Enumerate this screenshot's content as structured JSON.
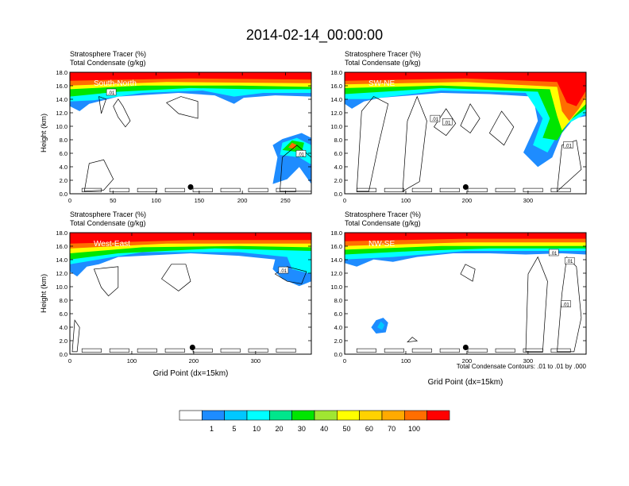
{
  "figure": {
    "title": "2014-02-14_00:00:00",
    "footnote": "Total Condensate Contours: .01 to .01 by .000"
  },
  "colorbar": {
    "labels": [
      "1",
      "5",
      "10",
      "20",
      "30",
      "40",
      "50",
      "60",
      "70",
      "100"
    ],
    "colors": [
      "#ffffff",
      "#1e8cff",
      "#00c8ff",
      "#00ffff",
      "#00e68c",
      "#00e600",
      "#a0e632",
      "#ffff00",
      "#ffd200",
      "#ffaa00",
      "#ff6e00",
      "#ff0000"
    ]
  },
  "chart_data": [
    {
      "type": "heatmap",
      "label": "South-North",
      "header_line1": "Stratosphere Tracer   (%)",
      "header_line2": "Total Condensate   (g/kg)",
      "ylabel": "Height (km)",
      "xlabel": "",
      "xlim": [
        0,
        280
      ],
      "ylim": [
        0,
        18
      ],
      "xticks": [
        "0",
        "50",
        "100",
        "150",
        "200",
        "250"
      ],
      "yticks": [
        "0.0",
        "2.0",
        "4.0",
        "6.0",
        "8.0",
        "10.0",
        "12.0",
        "14.0",
        "16.0",
        "18.0"
      ],
      "contour_labels": [
        {
          "x": 48,
          "y": 15.0,
          "text": ".01"
        },
        {
          "x": 268,
          "y": 5.9,
          "text": ".01"
        }
      ],
      "marker": {
        "x": 140,
        "y": 1.0
      }
    },
    {
      "type": "heatmap",
      "label": "SW-NE",
      "header_line1": "Stratosphere Tracer   (%)",
      "header_line2": "Total Condensate   (g/kg)",
      "ylabel": "",
      "xlabel": "",
      "xlim": [
        0,
        395
      ],
      "ylim": [
        0,
        18
      ],
      "xticks": [
        "0",
        "100",
        "200",
        "300"
      ],
      "yticks": [
        "0.0",
        "2.0",
        "4.0",
        "6.0",
        "8.0",
        "10.0",
        "12.0",
        "14.0",
        "16.0",
        "18.0"
      ],
      "contour_labels": [
        {
          "x": 148,
          "y": 11.1,
          "text": ".01"
        },
        {
          "x": 168,
          "y": 10.6,
          "text": ".01"
        },
        {
          "x": 366,
          "y": 7.2,
          "text": ".01"
        }
      ],
      "marker": {
        "x": 198,
        "y": 1.0
      }
    },
    {
      "type": "heatmap",
      "label": "West-East",
      "header_line1": "Stratosphere Tracer   (%)",
      "header_line2": "Total Condensate   (g/kg)",
      "ylabel": "Height (km)",
      "xlabel": "Grid Point (dx=15km)",
      "xlim": [
        0,
        390
      ],
      "ylim": [
        0,
        18
      ],
      "xticks": [
        "0",
        "100",
        "200",
        "300"
      ],
      "yticks": [
        "0.0",
        "2.0",
        "4.0",
        "6.0",
        "8.0",
        "10.0",
        "12.0",
        "14.0",
        "16.0",
        "18.0"
      ],
      "contour_labels": [
        {
          "x": 345,
          "y": 12.4,
          "text": ".01"
        }
      ],
      "marker": {
        "x": 198,
        "y": 1.0
      }
    },
    {
      "type": "heatmap",
      "label": "NW-SE",
      "header_line1": "Stratosphere Tracer   (%)",
      "header_line2": "Total Condensate   (g/kg)",
      "ylabel": "",
      "xlabel": "Grid Point (dx=15km)",
      "xlim": [
        0,
        395
      ],
      "ylim": [
        0,
        18
      ],
      "xticks": [
        "0",
        "100",
        "200",
        "300"
      ],
      "yticks": [
        "0.0",
        "2.0",
        "4.0",
        "6.0",
        "8.0",
        "10.0",
        "12.0",
        "14.0",
        "16.0",
        "18.0"
      ],
      "contour_labels": [
        {
          "x": 342,
          "y": 15.0,
          "text": ".01"
        },
        {
          "x": 368,
          "y": 13.8,
          "text": ".01"
        },
        {
          "x": 362,
          "y": 7.4,
          "text": ".01"
        }
      ],
      "marker": {
        "x": 198,
        "y": 1.0
      }
    }
  ]
}
